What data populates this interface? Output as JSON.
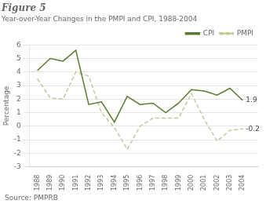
{
  "chart_data": {
    "type": "line",
    "title": "Figure 5",
    "subtitle": "Year-over-Year Changes in the PMPI and CPI, 1988-2004",
    "ylabel": "Percentage",
    "annotations": [
      "Source: PMPRB"
    ],
    "x": [
      1988,
      1989,
      1990,
      1991,
      1992,
      1993,
      1994,
      1995,
      1996,
      1997,
      1998,
      1999,
      2000,
      2001,
      2002,
      2003,
      2004
    ],
    "series": [
      {
        "name": "CPI",
        "color": "#5a7a2e",
        "line_style": "solid",
        "values": [
          4.1,
          5.0,
          4.8,
          5.6,
          1.6,
          1.8,
          0.3,
          2.2,
          1.6,
          1.7,
          1.0,
          1.7,
          2.7,
          2.6,
          2.3,
          2.8,
          1.9
        ],
        "value_labels": [
          null,
          null,
          null,
          null,
          null,
          null,
          null,
          null,
          null,
          null,
          null,
          null,
          null,
          null,
          null,
          null,
          "1.9"
        ]
      },
      {
        "name": "PMPI",
        "color": "#c8c49a",
        "line_style": "dashed",
        "values": [
          3.5,
          2.1,
          2.0,
          4.0,
          3.7,
          1.0,
          -0.1,
          -1.7,
          0.0,
          0.6,
          0.6,
          0.6,
          2.4,
          0.5,
          -1.1,
          -0.3,
          -0.2
        ],
        "value_labels": [
          null,
          null,
          null,
          null,
          null,
          null,
          null,
          null,
          null,
          null,
          null,
          null,
          null,
          null,
          null,
          null,
          "-0.2"
        ]
      }
    ],
    "xlim": [
      1987.4,
      2005.2
    ],
    "xticks": [
      1988,
      1989,
      1990,
      1991,
      1992,
      1993,
      1994,
      1995,
      1996,
      1997,
      1998,
      1999,
      2000,
      2001,
      2002,
      2003,
      2004
    ],
    "ylim": [
      -3,
      6
    ],
    "yticks": [
      -3,
      -2,
      -1,
      0,
      1,
      2,
      3,
      4,
      5,
      6
    ],
    "grid": "y",
    "legend": "upper right"
  }
}
